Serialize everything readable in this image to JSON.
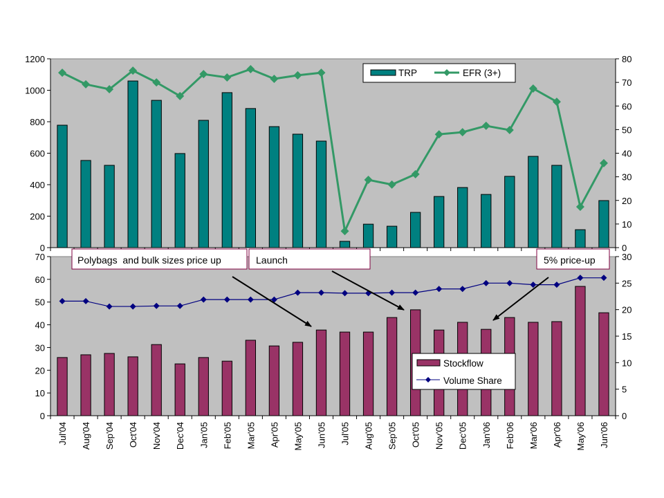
{
  "chart_data": [
    {
      "type": "bar+line",
      "title": "",
      "categories": [
        "Jul'04",
        "Aug'04",
        "Sep'04",
        "Oct'04",
        "Nov'04",
        "Dec'04",
        "Jan'05",
        "Feb'05",
        "Mar'05",
        "Apr'05",
        "May'05",
        "Jun'05",
        "Jul'05",
        "Aug'05",
        "Sep'05",
        "Oct'05",
        "Nov'05",
        "Dec'05",
        "Jan'06",
        "Feb'06",
        "Mar'06",
        "Apr'06",
        "May'06",
        "Jun'06"
      ],
      "y_left": {
        "label": "",
        "range": [
          0,
          1200
        ],
        "ticks": [
          0,
          200,
          400,
          600,
          800,
          1000,
          1200
        ]
      },
      "y_right": {
        "label": "",
        "range": [
          0,
          80
        ],
        "ticks": [
          0,
          10,
          20,
          30,
          40,
          50,
          60,
          70,
          80
        ]
      },
      "series": [
        {
          "name": "TRP",
          "type": "bar",
          "axis": "left",
          "color": "#008080",
          "values": [
            778,
            554,
            523,
            1059,
            936,
            598,
            809,
            985,
            884,
            769,
            721,
            677,
            40,
            149,
            136,
            224,
            325,
            382,
            338,
            453,
            580,
            523,
            114,
            299
          ]
        },
        {
          "name": "EFR (3+)",
          "type": "line",
          "axis": "right",
          "color": "#339966",
          "marker": "diamond",
          "values": [
            74.1,
            69.2,
            67.1,
            75.0,
            70.0,
            64.2,
            73.5,
            72.1,
            75.6,
            71.5,
            73.0,
            74.1,
            7.0,
            28.7,
            26.7,
            31.1,
            48.0,
            48.9,
            51.6,
            49.8,
            67.4,
            61.8,
            17.3,
            35.8
          ]
        }
      ],
      "legend": {
        "position": "top-center",
        "entries": [
          "TRP",
          "EFR (3+)"
        ]
      },
      "grid": false,
      "plot_background": "#C0C0C0"
    },
    {
      "type": "bar+line",
      "title": "",
      "categories": [
        "Jul'04",
        "Aug'04",
        "Sep'04",
        "Oct'04",
        "Nov'04",
        "Dec'04",
        "Jan'05",
        "Feb'05",
        "Mar'05",
        "Apr'05",
        "May'05",
        "Jun'05",
        "Jul'05",
        "Aug'05",
        "Sep'05",
        "Oct'05",
        "Nov'05",
        "Dec'05",
        "Jan'06",
        "Feb'06",
        "Mar'06",
        "Apr'06",
        "May'06",
        "Jun'06"
      ],
      "y_left": {
        "label": "",
        "range": [
          0,
          70
        ],
        "ticks": [
          0,
          10,
          20,
          30,
          40,
          50,
          60,
          70
        ]
      },
      "y_right": {
        "label": "",
        "range": [
          0,
          30
        ],
        "ticks": [
          0,
          5,
          10,
          15,
          20,
          25,
          30
        ]
      },
      "series": [
        {
          "name": "Stockflow",
          "type": "bar",
          "axis": "left",
          "color": "#993366",
          "values": [
            25.6,
            26.8,
            27.4,
            25.9,
            31.3,
            22.8,
            25.6,
            24.0,
            33.2,
            30.7,
            32.3,
            37.7,
            36.8,
            36.8,
            43.2,
            46.6,
            37.7,
            41.1,
            38.0,
            43.2,
            41.1,
            41.4,
            56.9,
            45.3
          ]
        },
        {
          "name": "Volume Share",
          "type": "line",
          "axis": "right",
          "color": "#000080",
          "marker": "diamond",
          "values": [
            21.6,
            21.6,
            20.6,
            20.6,
            20.7,
            20.7,
            21.9,
            21.9,
            21.9,
            21.9,
            23.2,
            23.2,
            23.1,
            23.1,
            23.2,
            23.2,
            23.9,
            23.9,
            25.0,
            25.0,
            24.7,
            24.7,
            26.0,
            26.0
          ]
        }
      ],
      "legend": {
        "position": "bottom-center",
        "entries": [
          "Stockflow",
          "Volume Share"
        ]
      },
      "annotations": [
        {
          "text": "Polybags  and bulk sizes price up",
          "points_to": "Jun'05"
        },
        {
          "text": "Launch",
          "points_to": "Oct'05"
        },
        {
          "text": "5% price-up",
          "points_to": "Jan'06"
        }
      ],
      "grid": false,
      "plot_background": "#C0C0C0"
    }
  ]
}
